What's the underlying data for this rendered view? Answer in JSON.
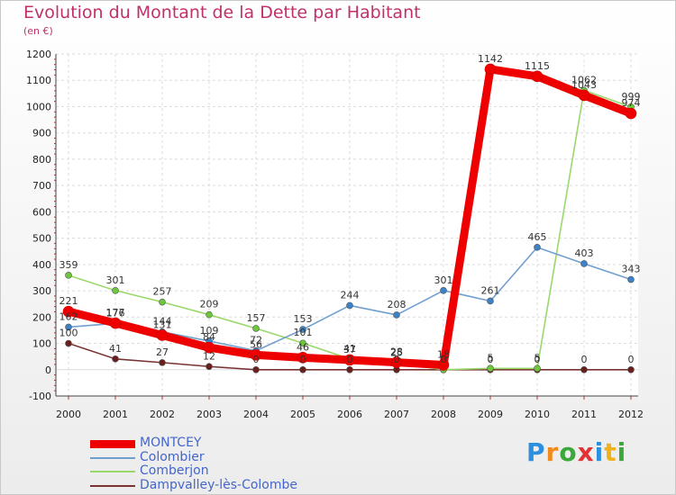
{
  "brand": {
    "text": "Proxiti",
    "letters": [
      {
        "ch": "P",
        "color": "#2c8fe0"
      },
      {
        "ch": "r",
        "color": "#f08a1c"
      },
      {
        "ch": "o",
        "color": "#3aa83a"
      },
      {
        "ch": "x",
        "color": "#e23434"
      },
      {
        "ch": "i",
        "color": "#2c8fe0"
      },
      {
        "ch": "t",
        "color": "#f0b21c"
      },
      {
        "ch": "i",
        "color": "#3aa83a"
      }
    ]
  },
  "chart_data": {
    "type": "line",
    "title": "Evolution du Montant de la Dette par Habitant",
    "subtitle": "(en €)",
    "xlabel": "",
    "ylabel": "",
    "x": [
      "2000",
      "2001",
      "2002",
      "2003",
      "2004",
      "2005",
      "2006",
      "2007",
      "2008",
      "2009",
      "2010",
      "2011",
      "2012"
    ],
    "ylim": [
      -100,
      1200
    ],
    "yticks": [
      -100,
      0,
      100,
      200,
      300,
      400,
      500,
      600,
      700,
      800,
      900,
      1000,
      1100,
      1200
    ],
    "grid": true,
    "legend_position": "bottom-left",
    "series": [
      {
        "name": "MONTCEY",
        "color": "#ee0000",
        "marker": "#ee0000",
        "values": [
          221,
          177,
          131,
          84,
          56,
          46,
          37,
          28,
          18,
          1142,
          1115,
          1043,
          974
        ]
      },
      {
        "name": "Colombier",
        "color": "#6f9fcf",
        "marker": "#3b82c8",
        "values": [
          162,
          176,
          144,
          109,
          72,
          153,
          244,
          208,
          301,
          261,
          465,
          403,
          343
        ]
      },
      {
        "name": "Comberjon",
        "color": "#9ad86b",
        "marker": "#6cc83a",
        "values": [
          359,
          301,
          257,
          209,
          157,
          101,
          41,
          25,
          0,
          5,
          5,
          1062,
          999
        ]
      },
      {
        "name": "Dampvalley-lès-Colombe",
        "color": "#7a3333",
        "marker": "#6a1f1f",
        "values": [
          100,
          41,
          27,
          12,
          0,
          0,
          0,
          0,
          0,
          0,
          0,
          0,
          0
        ]
      }
    ]
  }
}
